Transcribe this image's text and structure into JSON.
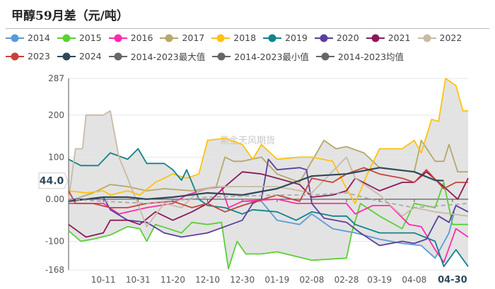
{
  "title": "甲醇59月差（元/吨）",
  "watermark": "紫金天风期货",
  "chart_data": {
    "type": "line",
    "title": "甲醇59月差（元/吨）",
    "ylim": [
      -168,
      287
    ],
    "yticks": [
      "287",
      "200",
      "100",
      "0.00",
      "-100",
      "-168"
    ],
    "ytick_values": [
      287,
      200,
      100,
      0,
      -100,
      -168
    ],
    "xlim": [
      "09-21",
      "05-09"
    ],
    "xticks": [
      "10-11",
      "10-31",
      "11-20",
      "12-10",
      "12-30",
      "01-19",
      "02-08",
      "02-28",
      "03-19",
      "04-08",
      "04-30"
    ],
    "highlight_xtick": "04-30",
    "pointer_value": "44.0",
    "grid": true,
    "legend_placement": "top",
    "envelope": {
      "max_name": "2014-2023最大值",
      "min_name": "2014-2023最小值",
      "mean_name": "2014-2023均值",
      "fill": "#e3e3e3"
    },
    "series": [
      {
        "name": "2014",
        "color": "#5b9bd5",
        "points": [
          [
            "12-30",
            -5
          ],
          [
            "01-10",
            -5
          ],
          [
            "01-19",
            -50
          ],
          [
            "02-01",
            -60
          ],
          [
            "02-08",
            -35
          ],
          [
            "02-20",
            -70
          ],
          [
            "03-05",
            -80
          ],
          [
            "03-19",
            -95
          ],
          [
            "04-01",
            -105
          ],
          [
            "04-12",
            -110
          ],
          [
            "04-20",
            -140
          ],
          [
            "04-28",
            -80
          ],
          [
            "05-01",
            -30
          ]
        ]
      },
      {
        "name": "2015",
        "color": "#5ad035",
        "points": [
          [
            "09-21",
            -75
          ],
          [
            "09-28",
            -100
          ],
          [
            "10-05",
            -95
          ],
          [
            "10-15",
            -85
          ],
          [
            "10-25",
            -65
          ],
          [
            "11-01",
            -70
          ],
          [
            "11-05",
            -100
          ],
          [
            "11-10",
            -60
          ],
          [
            "11-25",
            -80
          ],
          [
            "12-01",
            -55
          ],
          [
            "12-10",
            -60
          ],
          [
            "12-18",
            -55
          ],
          [
            "12-22",
            -165
          ],
          [
            "12-27",
            -100
          ],
          [
            "01-01",
            -130
          ],
          [
            "01-10",
            -130
          ],
          [
            "01-19",
            -125
          ],
          [
            "02-08",
            -145
          ],
          [
            "02-28",
            -140
          ],
          [
            "03-03",
            -80
          ],
          [
            "03-08",
            -10
          ],
          [
            "03-19",
            -40
          ],
          [
            "04-01",
            -70
          ],
          [
            "04-08",
            -10
          ],
          [
            "04-20",
            -20
          ],
          [
            "04-25",
            40
          ],
          [
            "04-30",
            -60
          ],
          [
            "05-09",
            -60
          ]
        ]
      },
      {
        "name": "2016",
        "color": "#ff2bac",
        "points": [
          [
            "09-21",
            -10
          ],
          [
            "10-01",
            -10
          ],
          [
            "10-11",
            -10
          ],
          [
            "10-20",
            -35
          ],
          [
            "11-05",
            -20
          ],
          [
            "11-20",
            -10
          ],
          [
            "11-28",
            10
          ],
          [
            "12-10",
            25
          ],
          [
            "12-18",
            30
          ],
          [
            "12-22",
            -20
          ],
          [
            "12-30",
            -5
          ],
          [
            "01-19",
            0
          ],
          [
            "01-30",
            -10
          ],
          [
            "02-08",
            -10
          ],
          [
            "02-28",
            -10
          ],
          [
            "03-05",
            -35
          ],
          [
            "03-15",
            -15
          ],
          [
            "03-25",
            -15
          ],
          [
            "04-05",
            -60
          ],
          [
            "04-12",
            -65
          ],
          [
            "04-20",
            -120
          ],
          [
            "04-25",
            -150
          ],
          [
            "05-02",
            -70
          ],
          [
            "05-09",
            -90
          ]
        ]
      },
      {
        "name": "2017",
        "color": "#b5a86a",
        "points": [
          [
            "09-21",
            -5
          ],
          [
            "10-05",
            15
          ],
          [
            "10-15",
            35
          ],
          [
            "10-25",
            30
          ],
          [
            "11-05",
            20
          ],
          [
            "11-15",
            25
          ],
          [
            "12-01",
            20
          ],
          [
            "12-15",
            30
          ],
          [
            "12-20",
            100
          ],
          [
            "12-25",
            90
          ],
          [
            "12-30",
            90
          ],
          [
            "01-10",
            100
          ],
          [
            "01-19",
            60
          ],
          [
            "02-01",
            40
          ],
          [
            "02-15",
            140
          ],
          [
            "02-22",
            120
          ],
          [
            "02-28",
            125
          ],
          [
            "03-10",
            110
          ],
          [
            "03-19",
            75
          ],
          [
            "04-08",
            65
          ],
          [
            "04-12",
            140
          ],
          [
            "04-20",
            90
          ],
          [
            "04-25",
            90
          ],
          [
            "04-28",
            130
          ],
          [
            "05-03",
            65
          ],
          [
            "05-09",
            65
          ]
        ]
      },
      {
        "name": "2018",
        "color": "#ffc20e",
        "points": [
          [
            "09-21",
            20
          ],
          [
            "10-01",
            15
          ],
          [
            "10-11",
            20
          ],
          [
            "10-15",
            10
          ],
          [
            "10-25",
            20
          ],
          [
            "11-01",
            10
          ],
          [
            "11-10",
            40
          ],
          [
            "11-20",
            60
          ],
          [
            "11-28",
            50
          ],
          [
            "12-05",
            60
          ],
          [
            "12-10",
            140
          ],
          [
            "12-20",
            145
          ],
          [
            "12-30",
            130
          ],
          [
            "01-05",
            95
          ],
          [
            "01-10",
            130
          ],
          [
            "01-19",
            95
          ],
          [
            "02-01",
            100
          ],
          [
            "02-08",
            100
          ],
          [
            "02-20",
            90
          ],
          [
            "02-28",
            25
          ],
          [
            "03-05",
            -10
          ],
          [
            "03-12",
            60
          ],
          [
            "03-19",
            120
          ],
          [
            "04-01",
            120
          ],
          [
            "04-08",
            140
          ],
          [
            "04-12",
            110
          ],
          [
            "04-18",
            190
          ],
          [
            "04-22",
            185
          ],
          [
            "04-26",
            287
          ],
          [
            "05-02",
            270
          ],
          [
            "05-06",
            210
          ],
          [
            "05-09",
            210
          ]
        ]
      },
      {
        "name": "2019",
        "color": "#12838a",
        "points": [
          [
            "09-21",
            95
          ],
          [
            "09-28",
            80
          ],
          [
            "10-08",
            80
          ],
          [
            "10-15",
            110
          ],
          [
            "10-25",
            95
          ],
          [
            "10-31",
            120
          ],
          [
            "11-05",
            85
          ],
          [
            "11-15",
            85
          ],
          [
            "11-20",
            70
          ],
          [
            "11-25",
            45
          ],
          [
            "11-28",
            70
          ],
          [
            "12-05",
            0
          ],
          [
            "12-10",
            -15
          ],
          [
            "12-20",
            -20
          ],
          [
            "12-30",
            -35
          ],
          [
            "01-05",
            -25
          ],
          [
            "01-19",
            -30
          ],
          [
            "01-30",
            -50
          ],
          [
            "02-08",
            -30
          ],
          [
            "02-20",
            -40
          ],
          [
            "02-28",
            -40
          ],
          [
            "03-05",
            -60
          ],
          [
            "03-19",
            -80
          ],
          [
            "04-08",
            -80
          ],
          [
            "04-20",
            -100
          ],
          [
            "04-25",
            -160
          ],
          [
            "05-02",
            -120
          ],
          [
            "05-09",
            -160
          ]
        ]
      },
      {
        "name": "2020",
        "color": "#5b3f9e",
        "points": [
          [
            "09-21",
            0
          ],
          [
            "10-05",
            0
          ],
          [
            "10-11",
            5
          ],
          [
            "10-15",
            -25
          ],
          [
            "10-25",
            -50
          ],
          [
            "11-05",
            -55
          ],
          [
            "11-15",
            -80
          ],
          [
            "11-25",
            -90
          ],
          [
            "12-10",
            -80
          ],
          [
            "12-20",
            -65
          ],
          [
            "12-30",
            -50
          ],
          [
            "01-05",
            -10
          ],
          [
            "01-10",
            0
          ],
          [
            "01-14",
            95
          ],
          [
            "01-19",
            70
          ],
          [
            "02-01",
            75
          ],
          [
            "02-05",
            70
          ],
          [
            "02-08",
            -10
          ],
          [
            "02-15",
            -45
          ],
          [
            "02-28",
            -55
          ],
          [
            "03-08",
            -80
          ],
          [
            "03-19",
            -110
          ],
          [
            "04-01",
            -100
          ],
          [
            "04-08",
            -105
          ],
          [
            "04-15",
            -95
          ],
          [
            "04-22",
            -40
          ],
          [
            "04-28",
            -55
          ],
          [
            "05-02",
            -15
          ],
          [
            "05-09",
            -30
          ]
        ]
      },
      {
        "name": "2021",
        "color": "#8b1a5a",
        "points": [
          [
            "09-21",
            -60
          ],
          [
            "10-01",
            -90
          ],
          [
            "10-11",
            -80
          ],
          [
            "10-15",
            -50
          ],
          [
            "10-25",
            -50
          ],
          [
            "11-01",
            -60
          ],
          [
            "11-10",
            -30
          ],
          [
            "11-20",
            -50
          ],
          [
            "12-01",
            -30
          ],
          [
            "12-10",
            -10
          ],
          [
            "12-20",
            30
          ],
          [
            "12-30",
            65
          ],
          [
            "01-10",
            60
          ],
          [
            "01-19",
            50
          ],
          [
            "02-01",
            35
          ],
          [
            "02-08",
            5
          ],
          [
            "02-20",
            10
          ],
          [
            "02-28",
            20
          ],
          [
            "03-05",
            50
          ],
          [
            "03-19",
            20
          ],
          [
            "04-01",
            40
          ],
          [
            "04-08",
            40
          ],
          [
            "04-15",
            65
          ],
          [
            "04-25",
            30
          ],
          [
            "05-03",
            0
          ],
          [
            "05-09",
            50
          ]
        ]
      },
      {
        "name": "2022",
        "color": "#c9baa6",
        "points": [
          [
            "09-21",
            0
          ],
          [
            "09-25",
            120
          ],
          [
            "09-29",
            120
          ],
          [
            "10-01",
            200
          ],
          [
            "10-05",
            200
          ],
          [
            "10-11",
            200
          ],
          [
            "10-15",
            210
          ],
          [
            "10-20",
            100
          ],
          [
            "10-25",
            50
          ],
          [
            "11-05",
            -65
          ],
          [
            "11-15",
            -10
          ],
          [
            "11-25",
            -20
          ],
          [
            "12-05",
            20
          ],
          [
            "12-15",
            30
          ],
          [
            "12-30",
            30
          ],
          [
            "01-19",
            30
          ],
          [
            "02-08",
            15
          ],
          [
            "02-28",
            100
          ],
          [
            "03-05",
            50
          ],
          [
            "03-19",
            10
          ],
          [
            "04-01",
            -40
          ],
          [
            "04-08",
            -20
          ],
          [
            "04-20",
            -30
          ],
          [
            "05-09",
            -40
          ]
        ]
      },
      {
        "name": "2023",
        "color": "#c8423a",
        "points": [
          [
            "09-21",
            20
          ],
          [
            "09-25",
            -10
          ],
          [
            "10-05",
            -10
          ],
          [
            "10-15",
            -20
          ],
          [
            "10-25",
            -20
          ],
          [
            "11-05",
            -10
          ],
          [
            "11-20",
            -5
          ],
          [
            "12-01",
            -20
          ],
          [
            "12-10",
            -10
          ],
          [
            "12-20",
            -30
          ],
          [
            "12-30",
            -15
          ],
          [
            "01-19",
            10
          ],
          [
            "02-01",
            -5
          ],
          [
            "02-08",
            50
          ],
          [
            "02-20",
            40
          ],
          [
            "02-28",
            60
          ],
          [
            "03-10",
            75
          ],
          [
            "03-19",
            60
          ],
          [
            "04-01",
            50
          ],
          [
            "04-08",
            40
          ],
          [
            "04-15",
            70
          ],
          [
            "04-25",
            25
          ],
          [
            "05-02",
            40
          ],
          [
            "05-09",
            40
          ]
        ]
      },
      {
        "name": "2024",
        "color": "#2f4858",
        "points": [
          [
            "09-21",
            -5
          ],
          [
            "10-11",
            5
          ],
          [
            "10-25",
            5
          ],
          [
            "11-05",
            0
          ],
          [
            "11-20",
            5
          ],
          [
            "12-10",
            15
          ],
          [
            "12-30",
            10
          ],
          [
            "01-19",
            25
          ],
          [
            "02-08",
            55
          ],
          [
            "02-28",
            60
          ],
          [
            "03-19",
            75
          ],
          [
            "04-08",
            65
          ],
          [
            "04-20",
            45
          ],
          [
            "04-25",
            44
          ]
        ]
      },
      {
        "name": "2014-2023最大值",
        "color": "#666666",
        "points": []
      },
      {
        "name": "2014-2023最小值",
        "color": "#666666",
        "points": []
      },
      {
        "name": "2014-2023均值",
        "color": "#666666",
        "dashed": true,
        "points": [
          [
            "09-21",
            0
          ],
          [
            "10-11",
            -5
          ],
          [
            "11-05",
            -10
          ],
          [
            "12-10",
            5
          ],
          [
            "01-19",
            10
          ],
          [
            "02-08",
            10
          ],
          [
            "02-28",
            15
          ],
          [
            "03-19",
            -5
          ],
          [
            "04-08",
            -20
          ],
          [
            "05-09",
            -10
          ]
        ]
      }
    ]
  }
}
